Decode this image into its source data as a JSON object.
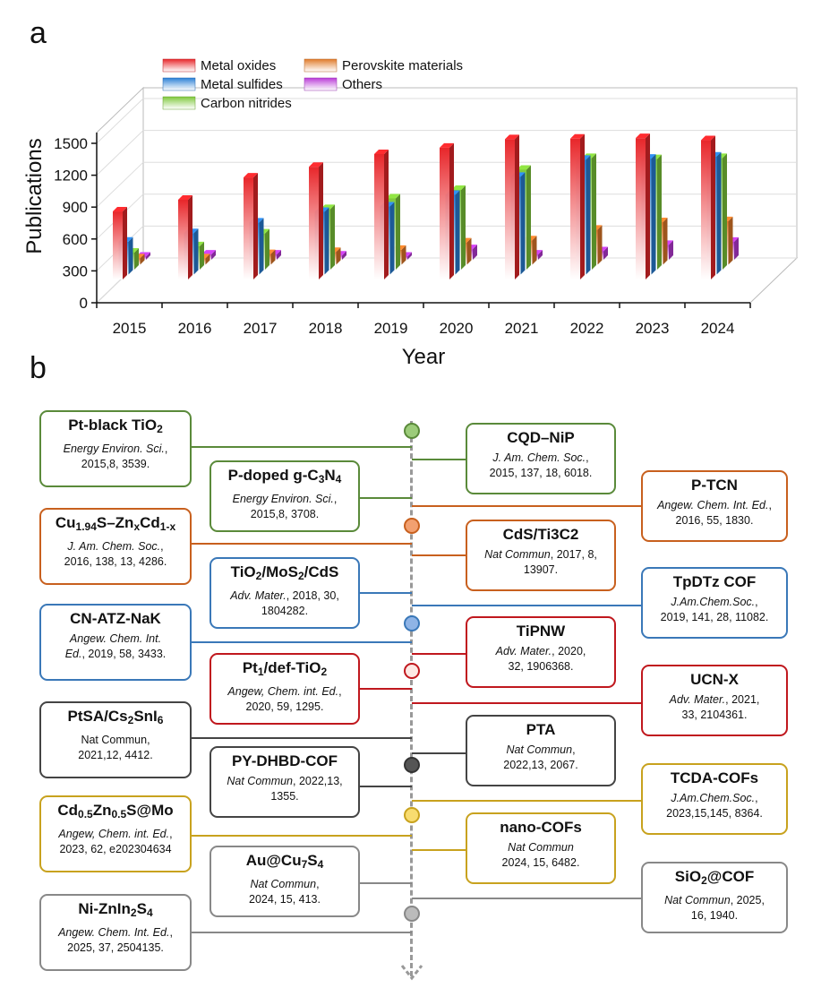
{
  "panel_a_label": "a",
  "panel_b_label": "b",
  "chart_data": {
    "type": "bar",
    "title": "",
    "xlabel": "Year",
    "ylabel": "Publications",
    "ylim": [
      0,
      1500
    ],
    "yticks": [
      "0",
      "300",
      "600",
      "900",
      "1200",
      "1500"
    ],
    "categories": [
      "2015",
      "2016",
      "2017",
      "2018",
      "2019",
      "2020",
      "2021",
      "2022",
      "2023",
      "2024"
    ],
    "series": [
      {
        "name": "Metal oxides",
        "color": "#e8262a",
        "values": [
          640,
          750,
          960,
          1060,
          1180,
          1240,
          1320,
          1325,
          1330,
          1310
        ]
      },
      {
        "name": "Metal sulfides",
        "color": "#2a7fd6",
        "values": [
          310,
          390,
          490,
          590,
          640,
          750,
          920,
          1080,
          1090,
          1110
        ]
      },
      {
        "name": "Carbon nitrides",
        "color": "#7ec83a",
        "values": [
          160,
          220,
          340,
          570,
          670,
          750,
          940,
          1050,
          1040,
          1050
        ]
      },
      {
        "name": "Perovskite materials",
        "color": "#e07a2a",
        "values": [
          60,
          60,
          100,
          120,
          140,
          210,
          230,
          330,
          400,
          410
        ]
      },
      {
        "name": "Others",
        "color": "#b93ad8",
        "values": [
          30,
          50,
          50,
          40,
          30,
          100,
          50,
          80,
          140,
          170
        ]
      }
    ],
    "legend": "top-left"
  },
  "timeline": {
    "left": [
      {
        "title": "Pt-black TiO<sub>2</sub>",
        "ref": "<i>Energy Environ. Sci.</i>,<br>2015,8, 3539.",
        "color": "#5a8a3a"
      },
      {
        "title": "Cu<sub>1.94</sub>S–Zn<sub>x</sub>Cd<sub>1-x</sub>",
        "ref": "<i>J. Am. Chem. Soc.</i>,<br>2016, 138, 13, 4286.",
        "color": "#c8601e"
      },
      {
        "title": "CN-ATZ-NaK",
        "ref": "<i>Angew. Chem. Int.<br>Ed.</i>, 2019, 58, 3433.",
        "color": "#3a78b8"
      },
      {
        "title": "PtSA/Cs<sub>2</sub>SnI<sub>6</sub>",
        "ref": "Nat Commun,<br>2021,12, 4412.",
        "color": "#444444"
      },
      {
        "title": "Cd<sub>0.5</sub>Zn<sub>0.5</sub>S@Mo",
        "ref": "<i>Angew, Chem. int. Ed.</i>,<br>2023, 62,  e202304634",
        "color": "#c8a21e"
      },
      {
        "title": "Ni-ZnIn<sub>2</sub>S<sub>4</sub>",
        "ref": "<i>Angew. Chem. Int. Ed.</i>,<br>2025, 37, 2504135.",
        "color": "#888888"
      }
    ],
    "mid_left": [
      {
        "title": "P-doped g-C<sub>3</sub>N<sub>4</sub>",
        "ref": "<i>Energy Environ. Sci.</i>,<br>2015,8, 3708.",
        "color": "#5a8a3a"
      },
      {
        "title": "TiO<sub>2</sub>/MoS<sub>2</sub>/CdS",
        "ref": "<i>Adv. Mater.</i>, 2018, 30,<br>1804282.",
        "color": "#3a78b8"
      },
      {
        "title": "Pt<sub>1</sub>/def-TiO<sub>2</sub>",
        "ref": "<i>Angew, Chem. int. Ed.</i>,<br>2020, 59, 1295.",
        "color": "#c0181e"
      },
      {
        "title": "PY-DHBD-COF",
        "ref": "<i>Nat Commun</i>, 2022,13,<br>1355.",
        "color": "#444444"
      },
      {
        "title": "Au@Cu<sub>7</sub>S<sub>4</sub>",
        "ref": "<i>Nat Commun</i>,<br>2024, 15, 413.",
        "color": "#888888"
      }
    ],
    "mid_right": [
      {
        "title": "CQD–NiP",
        "ref": "<i>J. Am. Chem. Soc.</i>,<br>2015, 137, 18, 6018.",
        "color": "#5a8a3a"
      },
      {
        "title": "CdS/Ti3C2",
        "ref": "<i>Nat Commun</i>, 2017, 8,<br>13907.",
        "color": "#c8601e"
      },
      {
        "title": "TiPNW",
        "ref": "<i>Adv. Mater.</i>, 2020,<br>32, 1906368.",
        "color": "#c0181e"
      },
      {
        "title": "PTA",
        "ref": "<i>Nat Commun</i>,<br>2022,13, 2067.",
        "color": "#444444"
      },
      {
        "title": "nano-COFs",
        "ref": "<i>Nat Commun</i><br>2024, 15, 6482.",
        "color": "#c8a21e"
      }
    ],
    "right": [
      {
        "title": "P-TCN",
        "ref": "<i>Angew. Chem. Int. Ed.</i>,<br>2016, 55, 1830.",
        "color": "#c8601e"
      },
      {
        "title": "TpDTz COF",
        "ref": "<i>J.Am.Chem.Soc.</i>,<br>2019, 141, 28, 11082.",
        "color": "#3a78b8"
      },
      {
        "title": "UCN-X",
        "ref": "<i>Adv. Mater.</i>, 2021,<br>33, 2104361.",
        "color": "#c0181e"
      },
      {
        "title": "TCDA-COFs",
        "ref": "<i>J.Am.Chem.Soc.</i>,<br>2023,15,145, 8364.",
        "color": "#c8a21e"
      },
      {
        "title": "SiO<sub>2</sub>@COF",
        "ref": "<i>Nat Commun</i>, 2025,<br>16, 1940.",
        "color": "#888888"
      }
    ],
    "dots": [
      {
        "fill": "#9ccc7a",
        "stroke": "#5a8a3a"
      },
      {
        "fill": "#f2a070",
        "stroke": "#c8601e"
      },
      {
        "fill": "#8fb4e6",
        "stroke": "#3a78b8"
      },
      {
        "fill": "#fde8e4",
        "stroke": "#c0181e"
      },
      {
        "fill": "#555555",
        "stroke": "#333333"
      },
      {
        "fill": "#f8dc70",
        "stroke": "#c8a21e"
      },
      {
        "fill": "#bbbbbb",
        "stroke": "#888888"
      }
    ]
  }
}
